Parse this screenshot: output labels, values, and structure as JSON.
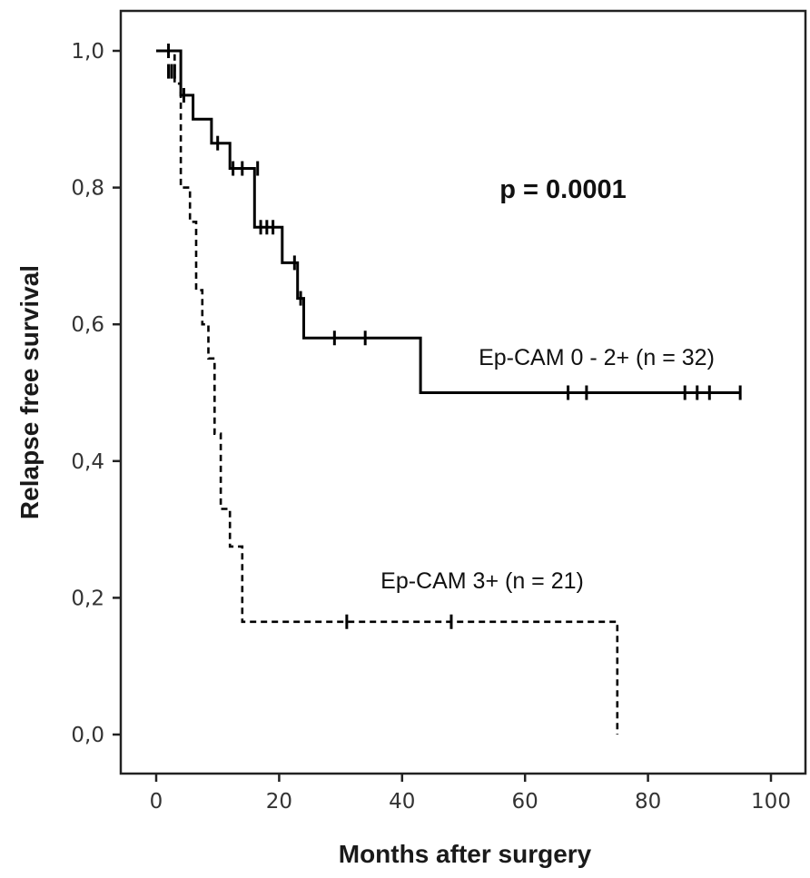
{
  "chart_data": {
    "type": "line",
    "subtype": "kaplan-meier",
    "xlabel": "Months after surgery",
    "ylabel": "Relapse free survival",
    "xlim": [
      -5,
      105
    ],
    "ylim": [
      -0.06,
      1.07
    ],
    "xticks": [
      0,
      20,
      40,
      60,
      80,
      100
    ],
    "xtick_labels": [
      "0",
      "20",
      "40",
      "60",
      "80",
      "100"
    ],
    "yticks": [
      0.0,
      0.2,
      0.4,
      0.6,
      0.8,
      1.0
    ],
    "ytick_labels": [
      "0,0",
      "0,2",
      "0,4",
      "0,6",
      "0,8",
      "1,0"
    ],
    "grid": false,
    "annotation": "p = 0.0001",
    "series": [
      {
        "name": "Ep-CAM 0 - 2+ (n = 32)",
        "line_style": "solid",
        "color": "#000000",
        "steps": [
          [
            0,
            1.0
          ],
          [
            4,
            0.935
          ],
          [
            6,
            0.9
          ],
          [
            9,
            0.865
          ],
          [
            12,
            0.828
          ],
          [
            16,
            0.742
          ],
          [
            20.5,
            0.69
          ],
          [
            23,
            0.638
          ],
          [
            24,
            0.58
          ],
          [
            43,
            0.5
          ],
          [
            95,
            0.5
          ]
        ],
        "censored": [
          [
            2,
            0.97
          ],
          [
            3,
            0.97
          ],
          [
            4.5,
            0.935
          ],
          [
            10,
            0.865
          ],
          [
            12.5,
            0.828
          ],
          [
            14,
            0.828
          ],
          [
            16.5,
            0.828
          ],
          [
            17,
            0.742
          ],
          [
            18,
            0.742
          ],
          [
            19,
            0.742
          ],
          [
            22.5,
            0.69
          ],
          [
            23.5,
            0.638
          ],
          [
            29,
            0.58
          ],
          [
            34,
            0.58
          ],
          [
            67,
            0.5
          ],
          [
            70,
            0.5
          ],
          [
            86,
            0.5
          ],
          [
            88,
            0.5
          ],
          [
            90,
            0.5
          ],
          [
            95,
            0.5
          ]
        ]
      },
      {
        "name": "Ep-CAM 3+ (n = 21)",
        "line_style": "dashed",
        "color": "#000000",
        "steps": [
          [
            0,
            1.0
          ],
          [
            3,
            0.952
          ],
          [
            4,
            0.8
          ],
          [
            5.5,
            0.75
          ],
          [
            6.5,
            0.65
          ],
          [
            7.5,
            0.6
          ],
          [
            8.5,
            0.55
          ],
          [
            9.5,
            0.44
          ],
          [
            10.5,
            0.33
          ],
          [
            12,
            0.275
          ],
          [
            14,
            0.165
          ],
          [
            75,
            0.0
          ]
        ],
        "censored": [
          [
            2,
            1.0
          ],
          [
            2.5,
            0.97
          ],
          [
            31,
            0.165
          ],
          [
            48,
            0.165
          ]
        ]
      }
    ]
  }
}
